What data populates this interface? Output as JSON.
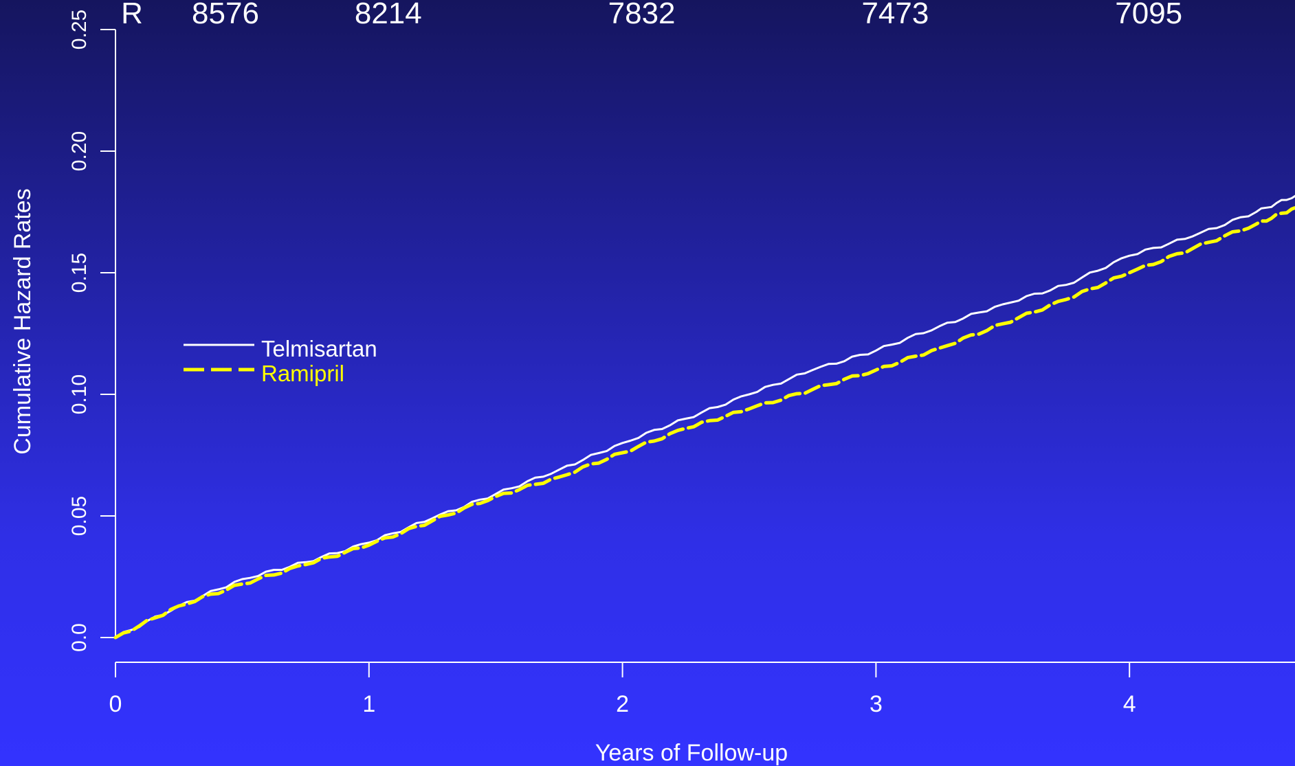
{
  "chart_data": {
    "type": "line",
    "xlabel": "Years of Follow-up",
    "ylabel": "Cumulative Hazard Rates",
    "xlim": [
      0,
      4.66
    ],
    "ylim": [
      0,
      0.25
    ],
    "x_ticks": [
      0,
      1,
      2,
      3,
      4
    ],
    "x_tick_labels": [
      "0",
      "1",
      "2",
      "3",
      "4"
    ],
    "y_ticks": [
      0,
      0.05,
      0.1,
      0.15,
      0.2,
      0.25
    ],
    "y_tick_labels": [
      "0.0",
      "0.05",
      "0.10",
      "0.15",
      "0.20",
      "0.25"
    ],
    "grid": false,
    "legend": {
      "position": "left-middle"
    },
    "series": [
      {
        "name": "Telmisartan",
        "color": "#ffffff",
        "dash": "solid",
        "x": [
          0,
          0.25,
          0.5,
          0.75,
          1.0,
          1.25,
          1.5,
          1.75,
          2.0,
          2.25,
          2.5,
          2.75,
          3.0,
          3.25,
          3.5,
          3.75,
          4.0,
          4.25,
          4.5,
          4.66
        ],
        "values": [
          0,
          0.013,
          0.024,
          0.031,
          0.039,
          0.049,
          0.059,
          0.069,
          0.08,
          0.09,
          0.1,
          0.11,
          0.118,
          0.128,
          0.137,
          0.145,
          0.157,
          0.165,
          0.175,
          0.182
        ]
      },
      {
        "name": "Ramipril",
        "color": "#ffff00",
        "dash": "dashed",
        "x": [
          0,
          0.25,
          0.5,
          0.75,
          1.0,
          1.25,
          1.5,
          1.75,
          2.0,
          2.25,
          2.5,
          2.75,
          3.0,
          3.25,
          3.5,
          3.75,
          4.0,
          4.25,
          4.5,
          4.66
        ],
        "values": [
          0,
          0.013,
          0.022,
          0.03,
          0.038,
          0.048,
          0.058,
          0.066,
          0.076,
          0.086,
          0.094,
          0.102,
          0.11,
          0.119,
          0.129,
          0.139,
          0.15,
          0.16,
          0.17,
          0.177
        ]
      }
    ],
    "risk_table": {
      "label": "R",
      "x": [
        0,
        1,
        2,
        3,
        4
      ],
      "values": [
        "8576",
        "8214",
        "7832",
        "7473",
        "7095"
      ]
    }
  }
}
